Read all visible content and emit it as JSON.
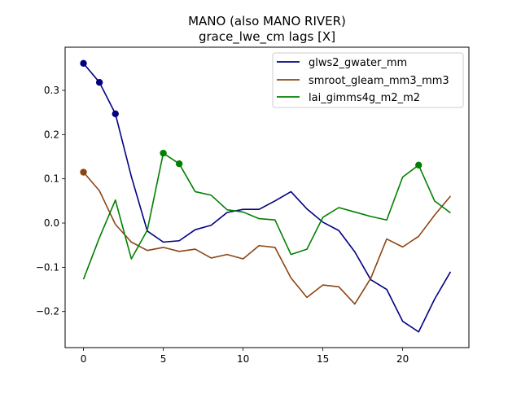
{
  "chart_data": {
    "type": "line",
    "title": "MANO (also MANO RIVER)",
    "subtitle": "grace_lwe_cm lags [X]",
    "xlabel": "",
    "ylabel": "",
    "xlim": [
      -1.15,
      24.15
    ],
    "ylim": [
      -0.2815,
      0.3975
    ],
    "x_ticks": [
      0,
      5,
      10,
      15,
      20
    ],
    "y_ticks": [
      -0.2,
      -0.1,
      0.0,
      0.1,
      0.2,
      0.3
    ],
    "y_tick_labels": [
      "−0.2",
      "−0.1",
      "0.0",
      "0.1",
      "0.2",
      "0.3"
    ],
    "legend_position": "top-right",
    "grid": false,
    "x": [
      0,
      1,
      2,
      3,
      4,
      5,
      6,
      7,
      8,
      9,
      10,
      11,
      12,
      13,
      14,
      15,
      16,
      17,
      18,
      19,
      20,
      21,
      22,
      23
    ],
    "series": [
      {
        "name": "glws2_gwater_mm",
        "color": "#000080",
        "values": [
          0.361,
          0.318,
          0.247,
          0.105,
          -0.018,
          -0.043,
          -0.04,
          -0.015,
          -0.005,
          0.024,
          0.031,
          0.031,
          0.05,
          0.071,
          0.032,
          0.002,
          -0.017,
          -0.065,
          -0.128,
          -0.15,
          -0.222,
          -0.246,
          -0.172,
          -0.11
        ],
        "markers": [
          0,
          1,
          2
        ]
      },
      {
        "name": "smroot_gleam_mm3_mm3",
        "color": "#8B4513",
        "values": [
          0.115,
          0.073,
          -0.003,
          -0.043,
          -0.062,
          -0.055,
          -0.064,
          -0.059,
          -0.079,
          -0.071,
          -0.081,
          -0.051,
          -0.055,
          -0.124,
          -0.168,
          -0.14,
          -0.144,
          -0.183,
          -0.125,
          -0.036,
          -0.054,
          -0.03,
          0.018,
          0.061
        ],
        "markers": [
          0
        ]
      },
      {
        "name": "lai_gimms4g_m2_m2",
        "color": "#008000",
        "values": [
          -0.127,
          -0.033,
          0.052,
          -0.081,
          -0.016,
          0.158,
          0.134,
          0.071,
          0.063,
          0.03,
          0.025,
          0.01,
          0.007,
          -0.071,
          -0.059,
          0.013,
          0.035,
          0.025,
          0.015,
          0.007,
          0.104,
          0.131,
          0.05,
          0.023
        ],
        "markers": [
          5,
          6,
          21
        ]
      }
    ]
  }
}
